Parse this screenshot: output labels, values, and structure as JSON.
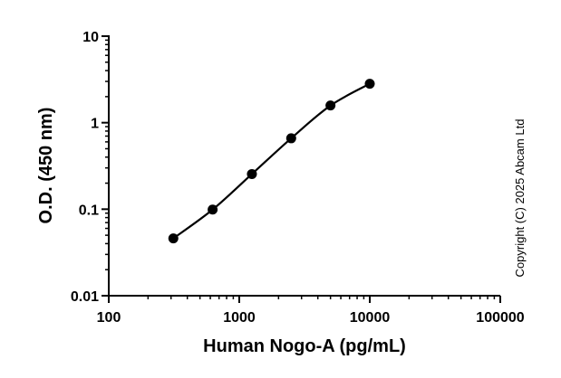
{
  "chart_data": {
    "type": "scatter",
    "x_scale": "log",
    "y_scale": "log",
    "xlabel": "Human Nogo-A (pg/mL)",
    "ylabel": "O.D. (450 nm)",
    "xlim": [
      100,
      100000
    ],
    "ylim": [
      0.01,
      10
    ],
    "x_ticks": [
      {
        "value": 100,
        "label": "100"
      },
      {
        "value": 1000,
        "label": "1000"
      },
      {
        "value": 10000,
        "label": "10000"
      },
      {
        "value": 100000,
        "label": "100000"
      }
    ],
    "y_ticks": [
      {
        "value": 0.01,
        "label": "0.01"
      },
      {
        "value": 0.1,
        "label": "0.1"
      },
      {
        "value": 1,
        "label": "1"
      },
      {
        "value": 10,
        "label": "10"
      }
    ],
    "grid": false,
    "fit_curve": true,
    "series": [
      {
        "points": [
          {
            "x": 312.5,
            "y": 0.046
          },
          {
            "x": 625,
            "y": 0.099
          },
          {
            "x": 1250,
            "y": 0.255
          },
          {
            "x": 2500,
            "y": 0.66
          },
          {
            "x": 5000,
            "y": 1.58
          },
          {
            "x": 10000,
            "y": 2.82
          }
        ],
        "color": "#000000"
      }
    ]
  },
  "copyright": "Copyright (C) 2025 Abcam Ltd"
}
